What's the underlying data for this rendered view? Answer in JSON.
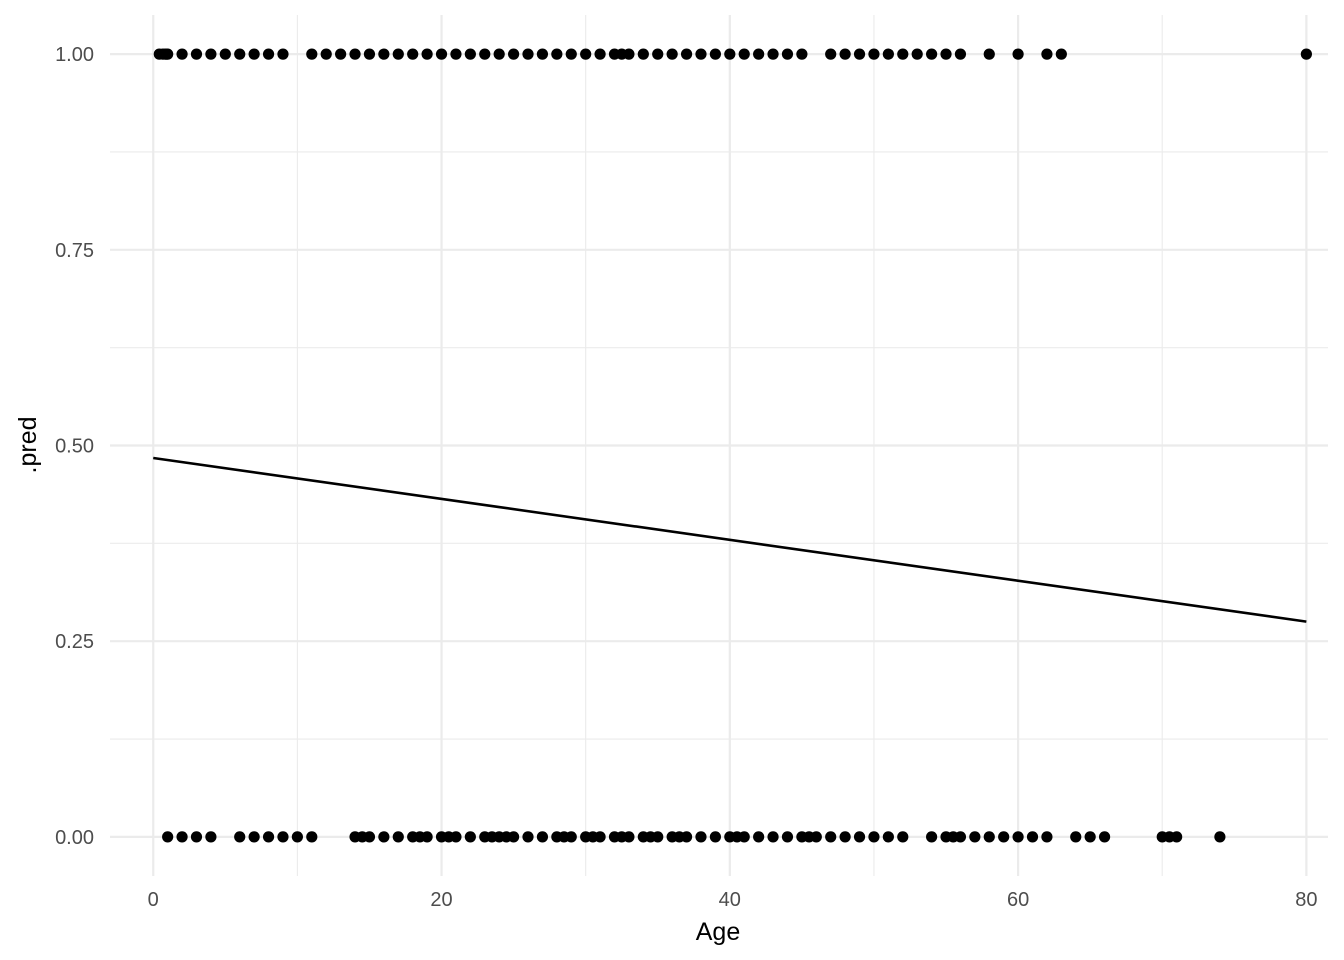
{
  "chart_data": {
    "type": "scatter",
    "xlabel": "Age",
    "ylabel": ".pred",
    "xlim": [
      -3.0,
      81.5
    ],
    "ylim": [
      -0.05,
      1.05
    ],
    "x_ticks": [
      0,
      20,
      40,
      60,
      80
    ],
    "x_tick_labels": [
      "0",
      "20",
      "40",
      "60",
      "80"
    ],
    "x_minor": [
      10,
      30,
      50,
      70
    ],
    "y_ticks": [
      0,
      0.25,
      0.5,
      0.75,
      1
    ],
    "y_tick_labels": [
      "0.00",
      "0.25",
      "0.50",
      "0.75",
      "1.00"
    ],
    "y_minor": [
      0.125,
      0.375,
      0.625,
      0.875
    ],
    "grid": true,
    "colors": {
      "points": "#000000",
      "line": "#000000",
      "grid": "#ebebeb"
    },
    "series": [
      {
        "type": "scatter",
        "y": 1,
        "x": [
          0.42,
          0.67,
          0.83,
          0.92,
          1,
          2,
          3,
          4,
          5,
          6,
          7,
          8,
          9,
          11,
          12,
          13,
          14,
          15,
          16,
          17,
          18,
          19,
          20,
          21,
          22,
          23,
          24,
          25,
          26,
          27,
          28,
          29,
          30,
          31,
          32,
          32.5,
          33,
          34,
          35,
          36,
          37,
          38,
          39,
          40,
          41,
          42,
          43,
          44,
          45,
          47,
          48,
          49,
          50,
          51,
          52,
          53,
          54,
          55,
          56,
          58,
          60,
          62,
          63,
          80
        ]
      },
      {
        "type": "scatter",
        "y": 0,
        "x": [
          1,
          2,
          3,
          4,
          6,
          7,
          8,
          9,
          10,
          11,
          14,
          14.5,
          15,
          16,
          17,
          18,
          18.5,
          19,
          20,
          20.5,
          21,
          22,
          23,
          23.5,
          24,
          24.5,
          25,
          26,
          27,
          28,
          28.5,
          29,
          30,
          30.5,
          31,
          32,
          32.5,
          33,
          34,
          34.5,
          35,
          36,
          36.5,
          37,
          38,
          39,
          40,
          40.5,
          41,
          42,
          43,
          44,
          45,
          45.5,
          46,
          47,
          48,
          49,
          50,
          51,
          52,
          54,
          55,
          55.5,
          56,
          57,
          58,
          59,
          60,
          61,
          62,
          64,
          65,
          66,
          70,
          70.5,
          71,
          74
        ]
      },
      {
        "type": "line",
        "x": [
          0,
          80
        ],
        "y": [
          0.484,
          0.275
        ]
      }
    ]
  }
}
